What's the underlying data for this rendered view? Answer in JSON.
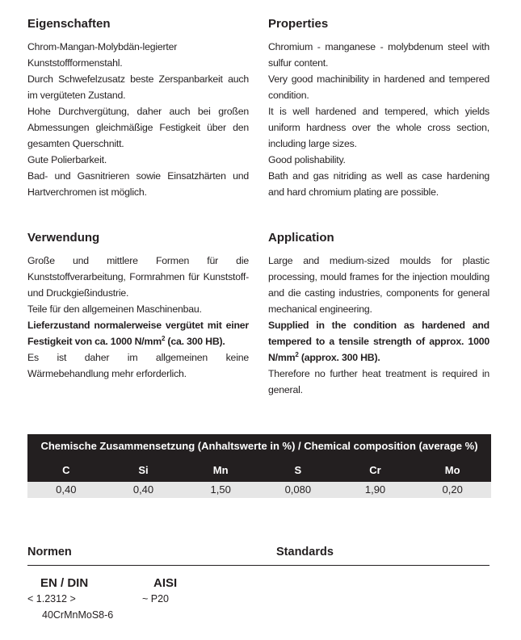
{
  "left": {
    "properties": {
      "heading": "Eigenschaften",
      "paragraphs": [
        "Chrom-Mangan-Molybdän-legierter Kunststoffformenstahl.",
        "Durch Schwefelzusatz beste Zerspanbarkeit auch im vergüteten Zustand.",
        "Hohe Durchvergütung, daher auch bei großen Abmessungen gleichmäßige Festigkeit über den gesamten Querschnitt.",
        "Gute Polierbarkeit.",
        "Bad- und Gasnitrieren sowie Einsatzhärten und Hartverchromen ist möglich."
      ]
    },
    "application": {
      "heading": "Verwendung",
      "p1": "Große und mittlere Formen für die Kunststoffverarbeitung, Formrahmen für Kunststoff- und Druckgießindustrie.",
      "p2": "Teile für den allgemeinen Maschinenbau.",
      "bold_a": "Lieferzustand normalerweise vergütet mit einer Festigkeit von ca. 1000 N/mm",
      "bold_sup": "2",
      "bold_b": " (ca. 300 HB).",
      "p4": "Es ist daher im allgemeinen keine Wärmebehandlung mehr erforderlich."
    }
  },
  "right": {
    "properties": {
      "heading": "Properties",
      "paragraphs": [
        "Chromium - manganese - molybdenum steel with sulfur content.",
        "Very good machinibility in hardened and tempered condition.",
        "It is well hardened and tempered, which yields uniform hardness over the whole cross section, including large sizes.",
        "Good polishability.",
        "Bath and gas nitriding as well as case hardening and hard chromium plating are possible."
      ]
    },
    "application": {
      "heading": "Application",
      "p1": "Large and medium-sized moulds for plastic processing, mould frames for the injection moulding and die casting industries, components for general mechanical engineering.",
      "bold_a": "Supplied in the condition as hardened and tempered to a tensile strength of approx. 1000 N/mm",
      "bold_sup": "2",
      "bold_b": " (approx. 300 HB).",
      "p3": "Therefore no further heat treatment is required in general."
    }
  },
  "composition": {
    "title": "Chemische Zusammensetzung (Anhaltswerte in %) / Chemical  composition (average %)",
    "elements": [
      "C",
      "Si",
      "Mn",
      "S",
      "Cr",
      "Mo"
    ],
    "values": [
      "0,40",
      "0,40",
      "1,50",
      "0,080",
      "1,90",
      "0,20"
    ]
  },
  "standards": {
    "heading_de": "Normen",
    "heading_en": "Standards",
    "en_din_label": "EN / DIN",
    "en_din_number": "< 1.2312 >",
    "en_din_name": "40CrMnMoS8-6",
    "aisi_label": "AISI",
    "aisi_value": "~ P20"
  }
}
